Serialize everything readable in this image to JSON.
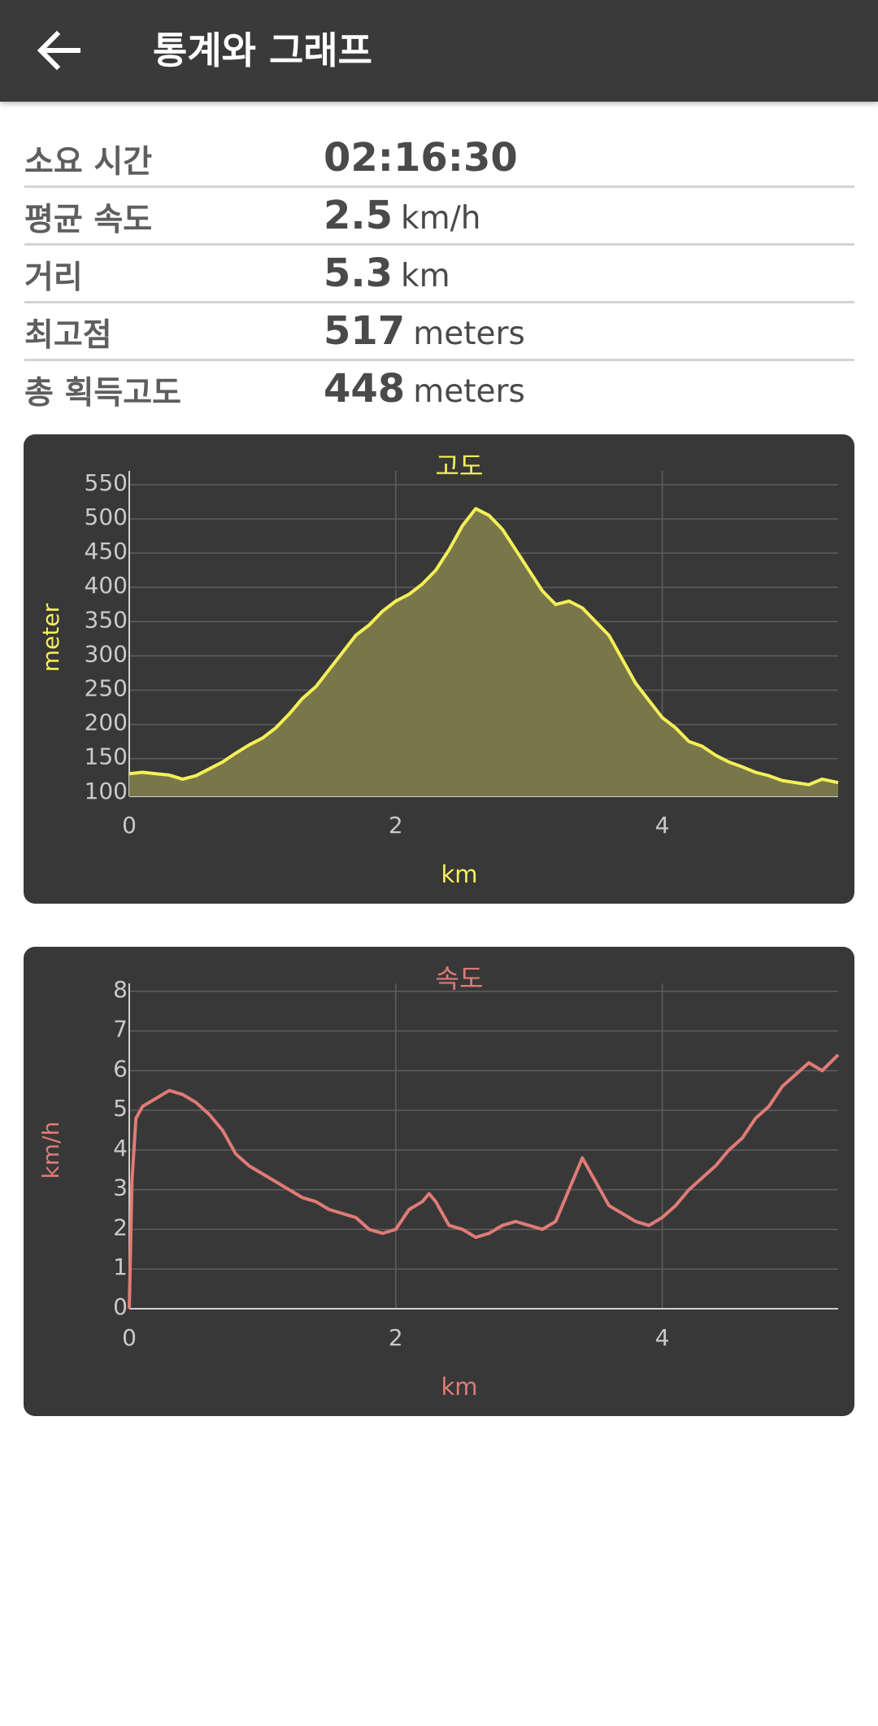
{
  "app_bar": {
    "title": "통계와 그래프",
    "back_icon": "arrow-left-icon"
  },
  "stats": [
    {
      "label": "소요 시간",
      "value": "02:16:30",
      "unit": ""
    },
    {
      "label": "평균 속도",
      "value": "2.5",
      "unit": "km/h"
    },
    {
      "label": "거리",
      "value": "5.3",
      "unit": "km"
    },
    {
      "label": "최고점",
      "value": "517",
      "unit": "meters"
    },
    {
      "label": "총 획득고도",
      "value": "448",
      "unit": "meters"
    }
  ],
  "chart_data": [
    {
      "type": "area",
      "title": "고도",
      "xlabel": "km",
      "ylabel": "meter",
      "color": "#f5f057",
      "fill": "#79774a",
      "xlim": [
        0,
        5.32
      ],
      "ylim": [
        95,
        570
      ],
      "x_ticks": [
        0,
        2,
        4
      ],
      "y_ticks": [
        100,
        150,
        200,
        250,
        300,
        350,
        400,
        450,
        500,
        550
      ],
      "grid": true,
      "x": [
        0,
        0.1,
        0.2,
        0.3,
        0.4,
        0.5,
        0.6,
        0.7,
        0.8,
        0.9,
        1.0,
        1.1,
        1.2,
        1.3,
        1.4,
        1.5,
        1.6,
        1.7,
        1.8,
        1.9,
        2.0,
        2.1,
        2.2,
        2.3,
        2.4,
        2.5,
        2.6,
        2.7,
        2.8,
        2.9,
        3.0,
        3.1,
        3.2,
        3.3,
        3.4,
        3.5,
        3.6,
        3.7,
        3.8,
        3.9,
        4.0,
        4.1,
        4.2,
        4.3,
        4.4,
        4.5,
        4.6,
        4.7,
        4.8,
        4.9,
        5.0,
        5.1,
        5.2,
        5.32
      ],
      "y": [
        128,
        130,
        128,
        126,
        120,
        125,
        135,
        145,
        158,
        170,
        180,
        195,
        215,
        238,
        255,
        280,
        305,
        330,
        345,
        365,
        380,
        390,
        405,
        425,
        455,
        490,
        515,
        505,
        485,
        455,
        425,
        395,
        375,
        380,
        370,
        350,
        330,
        295,
        260,
        235,
        210,
        195,
        175,
        168,
        155,
        145,
        138,
        130,
        125,
        118,
        115,
        112,
        120,
        115
      ]
    },
    {
      "type": "line",
      "title": "속도",
      "xlabel": "km",
      "ylabel": "km/h",
      "color": "#e07b76",
      "xlim": [
        0,
        5.32
      ],
      "ylim": [
        0,
        8.2
      ],
      "x_ticks": [
        0,
        2,
        4
      ],
      "y_ticks": [
        0,
        1,
        2,
        3,
        4,
        5,
        6,
        7,
        8
      ],
      "grid": true,
      "x": [
        0,
        0.02,
        0.05,
        0.1,
        0.2,
        0.3,
        0.4,
        0.5,
        0.6,
        0.7,
        0.8,
        0.9,
        1.0,
        1.1,
        1.2,
        1.3,
        1.4,
        1.5,
        1.6,
        1.7,
        1.8,
        1.9,
        2.0,
        2.1,
        2.2,
        2.25,
        2.3,
        2.4,
        2.5,
        2.6,
        2.7,
        2.8,
        2.9,
        3.0,
        3.1,
        3.2,
        3.3,
        3.4,
        3.5,
        3.6,
        3.7,
        3.8,
        3.9,
        4.0,
        4.1,
        4.2,
        4.3,
        4.4,
        4.5,
        4.6,
        4.7,
        4.8,
        4.9,
        5.0,
        5.1,
        5.2,
        5.32
      ],
      "y": [
        0,
        3.2,
        4.8,
        5.1,
        5.3,
        5.5,
        5.4,
        5.2,
        4.9,
        4.5,
        3.9,
        3.6,
        3.4,
        3.2,
        3.0,
        2.8,
        2.7,
        2.5,
        2.4,
        2.3,
        2.0,
        1.9,
        2.0,
        2.5,
        2.7,
        2.9,
        2.7,
        2.1,
        2.0,
        1.8,
        1.9,
        2.1,
        2.2,
        2.1,
        2.0,
        2.2,
        3.0,
        3.8,
        3.2,
        2.6,
        2.4,
        2.2,
        2.1,
        2.3,
        2.6,
        3.0,
        3.3,
        3.6,
        4.0,
        4.3,
        4.8,
        5.1,
        5.6,
        5.9,
        6.2,
        6.0,
        6.4
      ]
    }
  ]
}
